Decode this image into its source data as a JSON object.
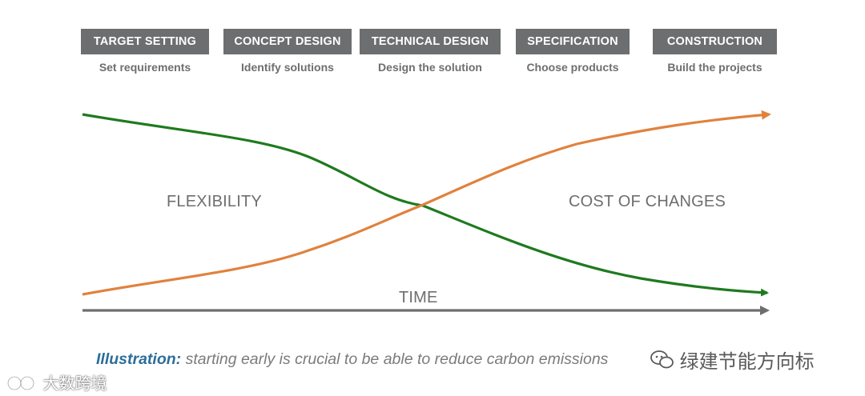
{
  "phases": [
    {
      "title": "TARGET SETTING",
      "subtitle": "Set requirements"
    },
    {
      "title": "CONCEPT DESIGN",
      "subtitle": "Identify solutions"
    },
    {
      "title": "TECHNICAL DESIGN",
      "subtitle": "Design the solution"
    },
    {
      "title": "SPECIFICATION",
      "subtitle": "Choose products"
    },
    {
      "title": "CONSTRUCTION",
      "subtitle": "Build the projects"
    }
  ],
  "labels": {
    "flexibility": "FLEXIBILITY",
    "cost": "COST OF CHANGES",
    "time": "TIME"
  },
  "caption": {
    "lead": "Illustration:",
    "text": "starting early is crucial to be able to reduce carbon emissions"
  },
  "watermarks": {
    "right": "绿建节能方向标",
    "left": "大数跨境"
  },
  "colors": {
    "flexibility": "#1f7a1f",
    "cost": "#e0823d",
    "time": "#6d6e70",
    "phase_bg": "#6d6e70",
    "caption_lead": "#2c6e99"
  },
  "icons": {
    "wechat": "wechat-icon",
    "left_logo": "brand-logo-icon"
  }
}
